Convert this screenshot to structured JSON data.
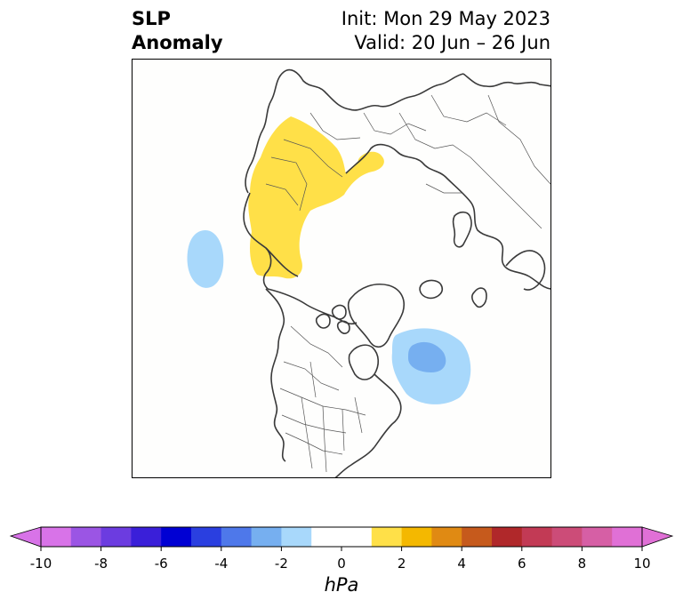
{
  "header": {
    "title_line1": "SLP",
    "title_line2": "Anomaly",
    "init": "Init: Mon 29 May 2023",
    "valid": "Valid: 20 Jun – 26 Jun"
  },
  "colorbar": {
    "unit": "hPa",
    "ticks": [
      "-10",
      "-8",
      "-6",
      "-4",
      "-2",
      "0",
      "2",
      "4",
      "6",
      "8",
      "10"
    ],
    "colors": [
      "#d873e8",
      "#9b55e4",
      "#6c3ce0",
      "#3a1fd9",
      "#0000d3",
      "#2a3fe0",
      "#4e78ea",
      "#76aff0",
      "#a8d8fb",
      "#ffffff",
      "#ffffff",
      "#ffe048",
      "#f4b800",
      "#e08a13",
      "#c65a1c",
      "#b0282a",
      "#c23a55",
      "#cc4c78",
      "#d65fa5",
      "#e070d6"
    ],
    "extend_low_color": "#d873e8",
    "extend_high_color": "#e070d6"
  },
  "map": {
    "projection": "north-polar-stereographic",
    "anomalies": [
      {
        "sign": "positive",
        "region": "Central Asia / Russia",
        "peak_hpa": 1.5,
        "color": "#ffe048"
      },
      {
        "sign": "negative",
        "region": "North Pacific (Aleutians)",
        "peak_hpa": -1.5,
        "color": "#a8d8fb"
      },
      {
        "sign": "negative",
        "region": "North Atlantic (Newfoundland)",
        "peak_hpa": -2.5,
        "color": "#76aff0"
      }
    ]
  }
}
